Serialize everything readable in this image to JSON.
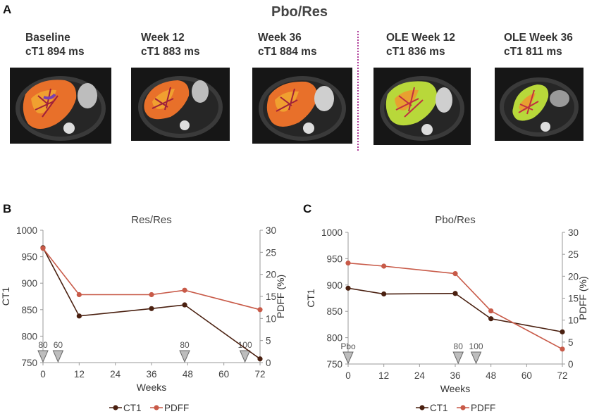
{
  "panelA": {
    "letter": "A",
    "title": "Pbo/Res",
    "scans": [
      {
        "line1": "Baseline",
        "line2": "cT1 894 ms"
      },
      {
        "line1": "Week 12",
        "line2": "cT1 883 ms"
      },
      {
        "line1": "Week 36",
        "line2": "cT1 884 ms"
      },
      {
        "line1": "OLE Week 12",
        "line2": "cT1 836 ms"
      },
      {
        "line1": "OLE Week 36",
        "line2": "cT1 811 ms"
      }
    ]
  },
  "chart_data": [
    {
      "letter": "B",
      "type": "line",
      "title": "Res/Res",
      "xlabel": "Weeks",
      "ylabel": "CT1",
      "ylabel_right": "PDFF (%)",
      "xlim": [
        0,
        72
      ],
      "xticks": [
        0,
        12,
        24,
        36,
        48,
        60,
        72
      ],
      "ylim": [
        750,
        1000
      ],
      "yticks": [
        750,
        800,
        850,
        900,
        950,
        1000
      ],
      "ylim_right": [
        0,
        30
      ],
      "yticks_right": [
        0,
        5,
        10,
        15,
        20,
        25,
        30
      ],
      "series": [
        {
          "name": "CT1",
          "axis": "left",
          "color": "#4a2010",
          "x": [
            0,
            12,
            36,
            47,
            72
          ],
          "y": [
            967,
            838,
            852,
            859,
            757
          ]
        },
        {
          "name": "PDFF",
          "axis": "right",
          "color": "#c85a48",
          "x": [
            0,
            12,
            36,
            47,
            72
          ],
          "y": [
            25.9,
            15.4,
            15.4,
            16.4,
            12.0
          ]
        }
      ],
      "dose_markers": [
        {
          "x": 0,
          "label": "80"
        },
        {
          "x": 5,
          "label": "60"
        },
        {
          "x": 47,
          "label": "80"
        },
        {
          "x": 67,
          "label": "100"
        }
      ],
      "legend": "bottom"
    },
    {
      "letter": "C",
      "type": "line",
      "title": "Pbo/Res",
      "xlabel": "Weeks",
      "ylabel": "CT1",
      "ylabel_right": "PDFF (%)",
      "xlim": [
        0,
        72
      ],
      "xticks": [
        0,
        12,
        24,
        36,
        48,
        60,
        72
      ],
      "ylim": [
        750,
        1000
      ],
      "yticks": [
        750,
        800,
        850,
        900,
        950,
        1000
      ],
      "ylim_right": [
        0,
        30
      ],
      "yticks_right": [
        0,
        5,
        10,
        15,
        20,
        25,
        30
      ],
      "series": [
        {
          "name": "CT1",
          "axis": "left",
          "color": "#4a2010",
          "x": [
            0,
            12,
            36,
            48,
            72
          ],
          "y": [
            894,
            883,
            884,
            836,
            811
          ]
        },
        {
          "name": "PDFF",
          "axis": "right",
          "color": "#c85a48",
          "x": [
            0,
            12,
            36,
            48,
            72
          ],
          "y": [
            23.0,
            22.3,
            20.6,
            12.1,
            3.4
          ]
        }
      ],
      "dose_markers": [
        {
          "x": 0,
          "label": "Pbo"
        },
        {
          "x": 37,
          "label": "80"
        },
        {
          "x": 43,
          "label": "100"
        }
      ],
      "legend": "bottom"
    }
  ],
  "colors": {
    "ct1": "#4a2010",
    "pdff": "#c85a48",
    "marker_fill": "#bdbdbd",
    "divider": "#b0409a"
  }
}
